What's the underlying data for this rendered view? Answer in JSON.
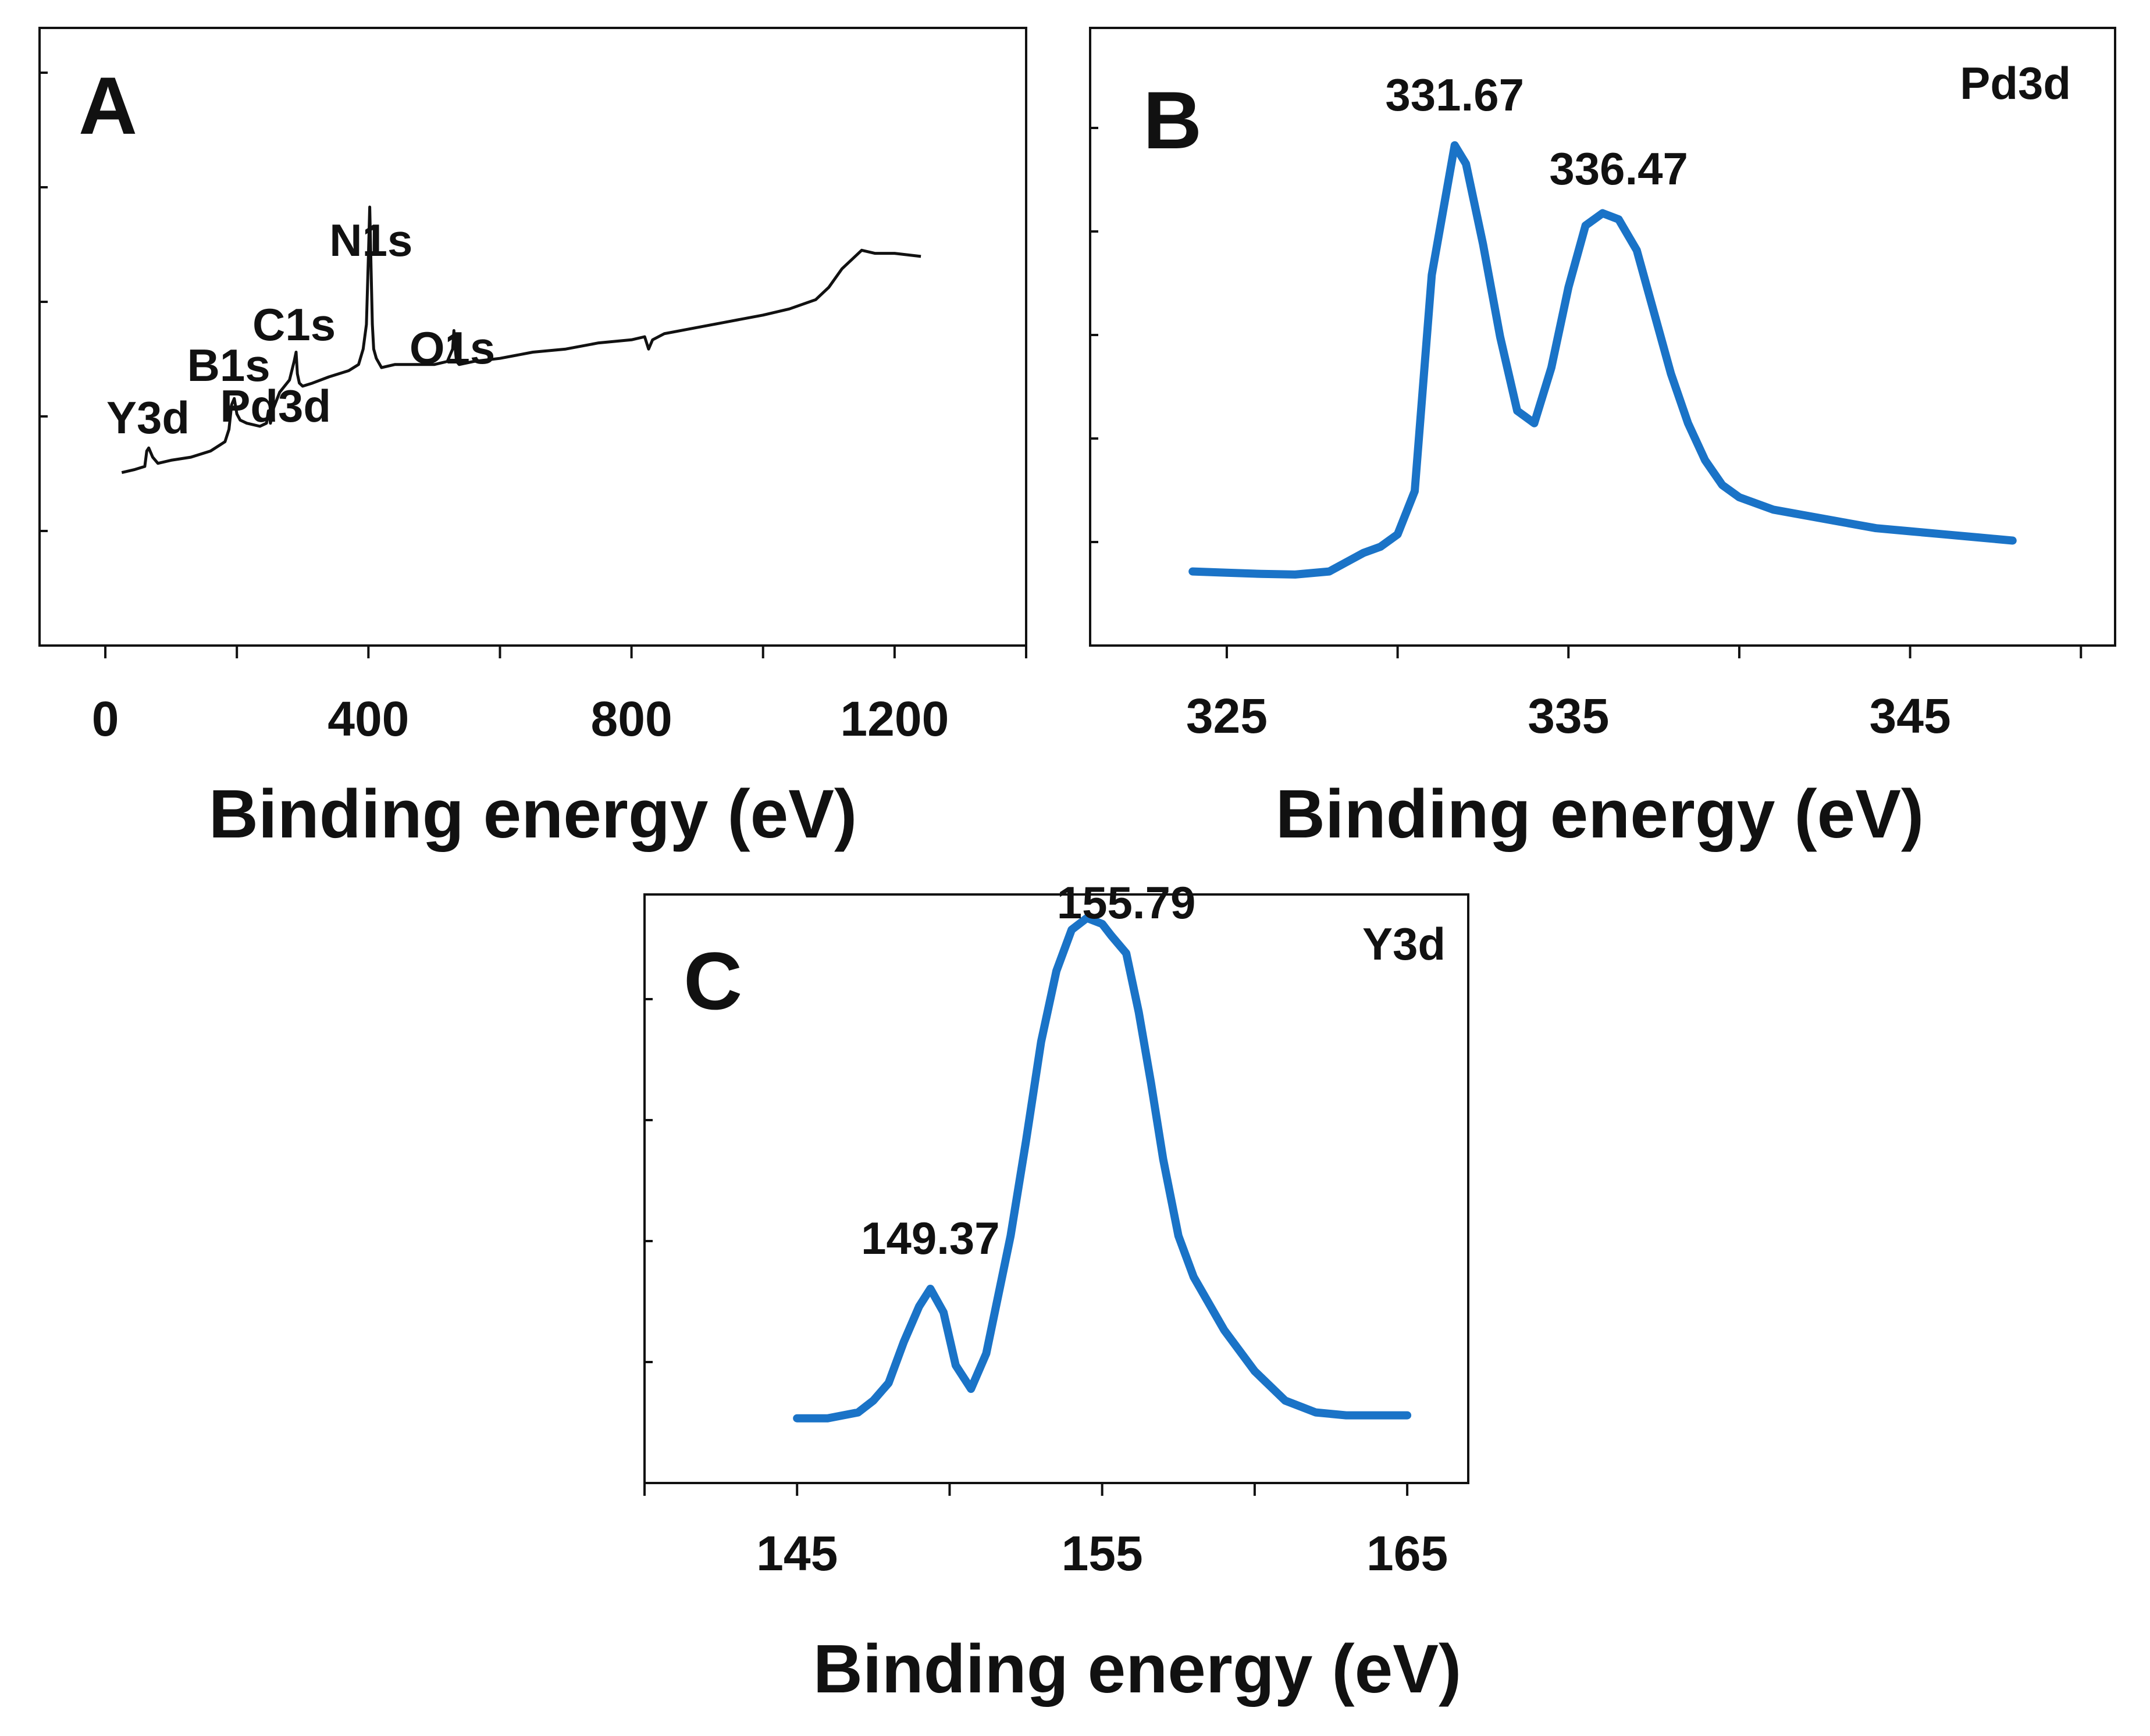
{
  "figure_panels": [
    "A",
    "B",
    "C"
  ],
  "chart_data": [
    {
      "panel": "A",
      "type": "line",
      "title": "",
      "xlabel": "Binding energy (eV)",
      "ylabel": "",
      "xlim": [
        -100,
        1400
      ],
      "ylim": [
        0,
        100
      ],
      "x_ticks": [
        0,
        400,
        800,
        1200
      ],
      "y_tick_count": 6,
      "color": "#111111",
      "series": [
        {
          "name": "survey",
          "x": [
            25,
            45,
            60,
            63,
            66,
            72,
            80,
            100,
            130,
            160,
            182,
            188,
            192,
            196,
            200,
            205,
            215,
            235,
            245,
            248,
            251,
            256,
            265,
            280,
            287,
            290,
            292,
            295,
            300,
            315,
            340,
            370,
            385,
            392,
            397,
            400,
            402,
            404,
            406,
            408,
            412,
            420,
            440,
            470,
            500,
            520,
            528,
            530,
            532,
            534,
            538,
            560,
            600,
            650,
            700,
            750,
            800,
            820,
            826,
            832,
            850,
            900,
            950,
            1000,
            1040,
            1080,
            1100,
            1120,
            1140,
            1150,
            1170,
            1200,
            1240
          ],
          "y": [
            28,
            28.5,
            29,
            31.5,
            32,
            30.5,
            29.5,
            30,
            30.5,
            31.5,
            33,
            35,
            39,
            40,
            37.5,
            36.5,
            36,
            35.5,
            36,
            38,
            36,
            38.5,
            41,
            43,
            46,
            47.5,
            44,
            42.5,
            42,
            42.5,
            43.5,
            44.5,
            45.5,
            48,
            52,
            63,
            71,
            61,
            52,
            48,
            46.5,
            45,
            45.5,
            45.5,
            45.5,
            46,
            48,
            51,
            48,
            46,
            45.5,
            46,
            46.5,
            47.5,
            48,
            49,
            49.5,
            50,
            48,
            49.5,
            50.5,
            51.5,
            52.5,
            53.5,
            54.5,
            56,
            58,
            61,
            63,
            64,
            63.5,
            63.5,
            63
          ]
        }
      ],
      "annotations": [
        {
          "text": "Y3d",
          "x": 65
        },
        {
          "text": "B1s",
          "x": 192
        },
        {
          "text": "Pd3d",
          "x": 250
        },
        {
          "text": "C1s",
          "x": 287
        },
        {
          "text": "N1s",
          "x": 404
        },
        {
          "text": "O1s",
          "x": 532
        }
      ]
    },
    {
      "panel": "B",
      "type": "line",
      "title": "",
      "corner_label": "Pd3d",
      "xlabel": "Binding energy (eV)",
      "ylabel": "",
      "xlim": [
        321,
        351
      ],
      "ylim": [
        0,
        100
      ],
      "x_ticks": [
        325,
        335,
        345
      ],
      "y_tick_count": 6,
      "color": "#1a73c7",
      "series": [
        {
          "name": "Pd3d",
          "x": [
            324,
            325,
            326,
            327,
            328,
            328.5,
            329,
            329.5,
            330,
            330.5,
            331,
            331.67,
            332,
            332.5,
            333,
            333.5,
            334,
            334.5,
            335,
            335.5,
            336,
            336.47,
            337,
            337.5,
            338,
            338.5,
            339,
            339.5,
            340,
            341,
            342,
            343,
            344,
            345,
            346,
            347,
            348
          ],
          "y": [
            12,
            11.8,
            11.6,
            11.5,
            12,
            13.5,
            15,
            16,
            18,
            25,
            60,
            81,
            78,
            65,
            50,
            38,
            36,
            45,
            58,
            68,
            70,
            69,
            64,
            54,
            44,
            36,
            30,
            26,
            24,
            22,
            21,
            20,
            19,
            18.5,
            18,
            17.5,
            17
          ]
        }
      ],
      "annotations": [
        {
          "text": "331.67",
          "x": 331.67
        },
        {
          "text": "336.47",
          "x": 336.47
        }
      ]
    },
    {
      "panel": "C",
      "type": "line",
      "title": "",
      "corner_label": "Y3d",
      "xlabel": "Binding energy (eV)",
      "ylabel": "",
      "xlim": [
        140,
        167
      ],
      "ylim": [
        0,
        100
      ],
      "x_ticks": [
        145,
        155,
        165
      ],
      "y_tick_count": 5,
      "color": "#1a73c7",
      "series": [
        {
          "name": "Y3d",
          "x": [
            145,
            146,
            147,
            147.5,
            148,
            148.5,
            149,
            149.37,
            149.8,
            150.2,
            150.7,
            151.2,
            152,
            152.5,
            153,
            153.5,
            154,
            154.5,
            155,
            155.3,
            155.79,
            156.2,
            156.6,
            157,
            157.5,
            158,
            159,
            160,
            161,
            162,
            163,
            164,
            165
          ],
          "y": [
            11,
            11,
            12,
            14,
            17,
            24,
            30,
            33,
            29,
            20,
            16,
            22,
            42,
            58,
            75,
            87,
            94,
            96,
            95,
            93,
            90,
            80,
            68,
            55,
            42,
            35,
            26,
            19,
            14,
            12,
            11.5,
            11.5,
            11.5
          ]
        }
      ],
      "annotations": [
        {
          "text": "149.37",
          "x": 149.37
        },
        {
          "text": "155.79",
          "x": 155.79
        }
      ]
    }
  ]
}
